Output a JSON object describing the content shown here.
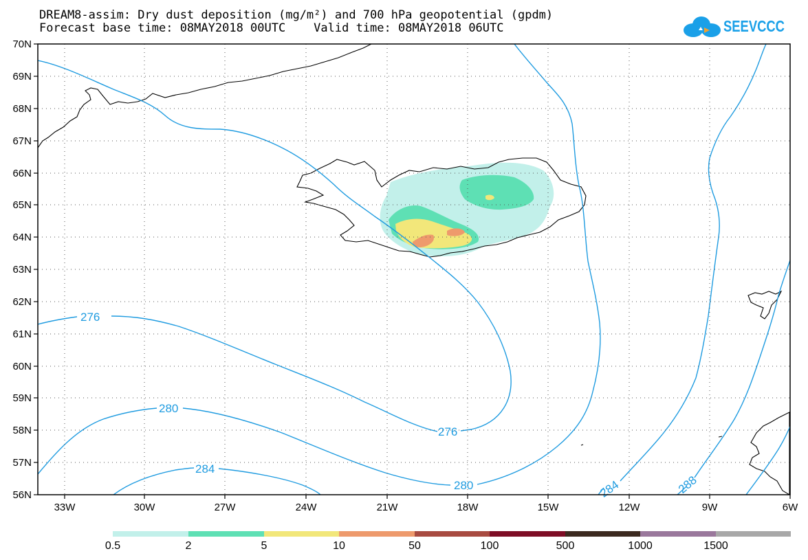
{
  "header": {
    "title_line1": "DREAM8-assim: Dry dust deposition (mg/m²) and 700 hPa geopotential (gpdm)",
    "title_line2": "Forecast base time: 08MAY2018 00UTC    Valid time: 08MAY2018 06UTC",
    "logo_text": "SEEVCCC"
  },
  "colors": {
    "contour": "#1e9be0",
    "coast": "#000000",
    "legend_bins": [
      "#c2f0ea",
      "#5ee0b4",
      "#f2e77a",
      "#ee9a6c",
      "#a84b41",
      "#7e0d25",
      "#3c2a1f",
      "#9a789c",
      "#a8a8a8"
    ]
  },
  "map": {
    "lat_labels": [
      "70N",
      "69N",
      "68N",
      "67N",
      "66N",
      "65N",
      "64N",
      "63N",
      "62N",
      "61N",
      "60N",
      "59N",
      "58N",
      "57N",
      "56N"
    ],
    "lon_labels": [
      "33W",
      "30W",
      "27W",
      "24W",
      "21W",
      "18W",
      "15W",
      "12W",
      "9W",
      "6W"
    ],
    "contour_labels": [
      "276",
      "276",
      "280",
      "280",
      "284",
      "284",
      "288"
    ]
  },
  "legend": {
    "labels": [
      "0.5",
      "2",
      "5",
      "10",
      "50",
      "100",
      "500",
      "1000",
      "1500"
    ]
  }
}
